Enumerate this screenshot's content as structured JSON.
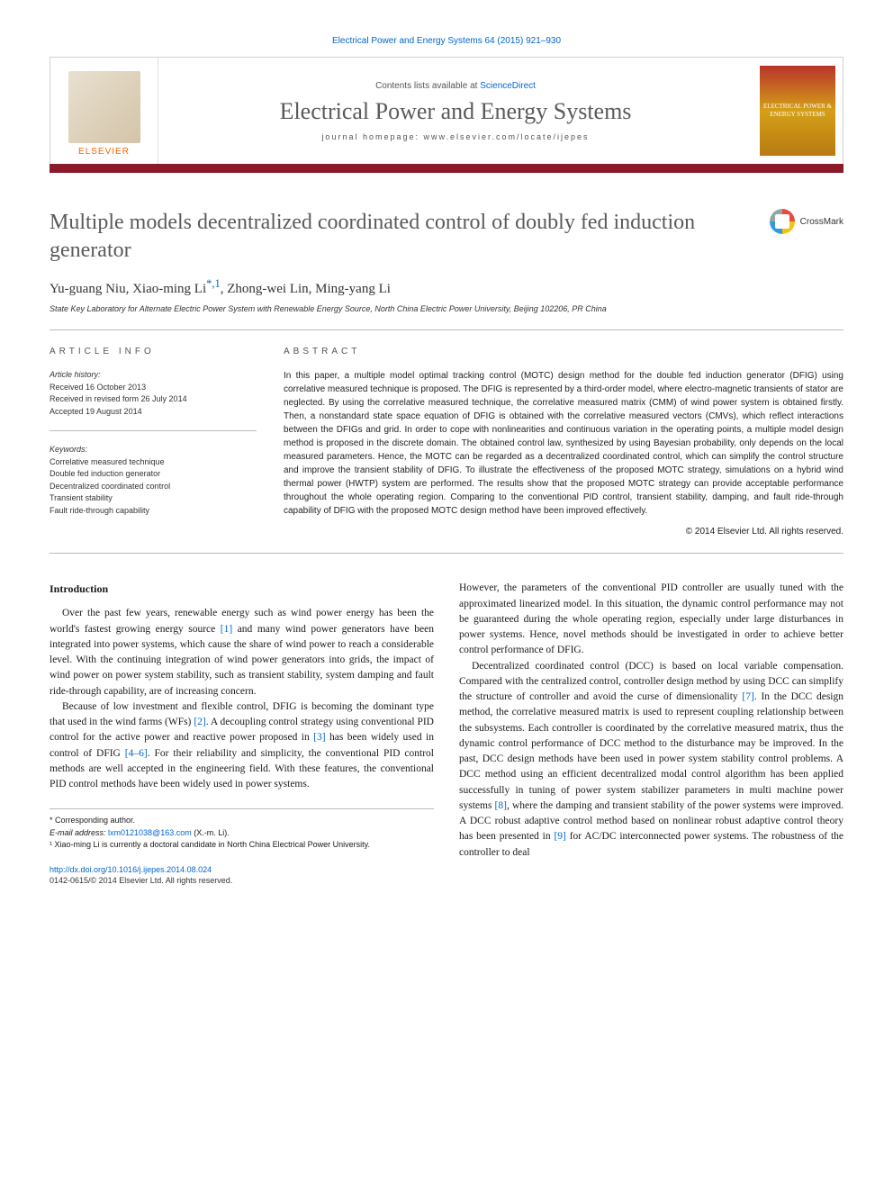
{
  "header": {
    "citation": "Electrical Power and Energy Systems 64 (2015) 921–930",
    "contents_prefix": "Contents lists available at ",
    "contents_link": "ScienceDirect",
    "journal_name": "Electrical Power and Energy Systems",
    "homepage_label": "journal homepage: www.elsevier.com/locate/ijepes",
    "publisher": "ELSEVIER",
    "cover_text": "ELECTRICAL POWER & ENERGY SYSTEMS",
    "crossmark": "CrossMark"
  },
  "article": {
    "title": "Multiple models decentralized coordinated control of doubly fed induction generator",
    "authors_plain": "Yu-guang Niu, Xiao-ming Li",
    "author_corr_marks": "*,1",
    "authors_rest": ", Zhong-wei Lin, Ming-yang Li",
    "affiliation": "State Key Laboratory for Alternate Electric Power System with Renewable Energy Source, North China Electric Power University, Beijing 102206, PR China"
  },
  "info": {
    "label": "ARTICLE INFO",
    "history_label": "Article history:",
    "received": "Received 16 October 2013",
    "revised": "Received in revised form 26 July 2014",
    "accepted": "Accepted 19 August 2014",
    "keywords_label": "Keywords:",
    "keywords": [
      "Correlative measured technique",
      "Double fed induction generator",
      "Decentralized coordinated control",
      "Transient stability",
      "Fault ride-through capability"
    ]
  },
  "abstract": {
    "label": "ABSTRACT",
    "text": "In this paper, a multiple model optimal tracking control (MOTC) design method for the double fed induction generator (DFIG) using correlative measured technique is proposed. The DFIG is represented by a third-order model, where electro-magnetic transients of stator are neglected. By using the correlative measured technique, the correlative measured matrix (CMM) of wind power system is obtained firstly. Then, a nonstandard state space equation of DFIG is obtained with the correlative measured vectors (CMVs), which reflect interactions between the DFIGs and grid. In order to cope with nonlinearities and continuous variation in the operating points, a multiple model design method is proposed in the discrete domain. The obtained control law, synthesized by using Bayesian probability, only depends on the local measured parameters. Hence, the MOTC can be regarded as a decentralized coordinated control, which can simplify the control structure and improve the transient stability of DFIG. To illustrate the effectiveness of the proposed MOTC strategy, simulations on a hybrid wind thermal power (HWTP) system are performed. The results show that the proposed MOTC strategy can provide acceptable performance throughout the whole operating region. Comparing to the conventional PID control, transient stability, damping, and fault ride-through capability of DFIG with the proposed MOTC design method have been improved effectively.",
    "copyright": "© 2014 Elsevier Ltd. All rights reserved."
  },
  "body": {
    "intro_heading": "Introduction",
    "col1_p1_a": "Over the past few years, renewable energy such as wind power energy has been the world's fastest growing energy source ",
    "ref1": "[1]",
    "col1_p1_b": " and many wind power generators have been integrated into power systems, which cause the share of wind power to reach a considerable level. With the continuing integration of wind power generators into grids, the impact of wind power on power system stability, such as transient stability, system damping and fault ride-through capability, are of increasing concern.",
    "col1_p2_a": "Because of low investment and flexible control, DFIG is becoming the dominant type that used in the wind farms (WFs) ",
    "ref2": "[2]",
    "col1_p2_b": ". A decoupling control strategy using conventional PID control for the active power and reactive power proposed in ",
    "ref3": "[3]",
    "col1_p2_c": " has been widely used in control of DFIG ",
    "ref46": "[4–6]",
    "col1_p2_d": ". For their reliability and simplicity, the conventional PID control methods are well accepted in the engineering field. With these features, the conventional PID control methods have been widely used in power systems.",
    "col2_p1": "However, the parameters of the conventional PID controller are usually tuned with the approximated linearized model. In this situation, the dynamic control performance may not be guaranteed during the whole operating region, especially under large disturbances in power systems. Hence, novel methods should be investigated in order to achieve better control performance of DFIG.",
    "col2_p2_a": "Decentralized coordinated control (DCC) is based on local variable compensation. Compared with the centralized control, controller design method by using DCC can simplify the structure of controller and avoid the curse of dimensionality ",
    "ref7": "[7]",
    "col2_p2_b": ". In the DCC design method, the correlative measured matrix is used to represent coupling relationship between the subsystems. Each controller is coordinated by the correlative measured matrix, thus the dynamic control performance of DCC method to the disturbance may be improved. In the past, DCC design methods have been used in power system stability control problems. A DCC method using an efficient decentralized modal control algorithm has been applied successfully in tuning of power system stabilizer parameters in multi machine power systems ",
    "ref8": "[8]",
    "col2_p2_c": ", where the damping and transient stability of the power systems were improved. A DCC robust adaptive control method based on nonlinear robust adaptive control theory has been presented in ",
    "ref9": "[9]",
    "col2_p2_d": " for AC/DC interconnected power systems. The robustness of the controller to deal"
  },
  "footnotes": {
    "corr": "* Corresponding author.",
    "email_label": "E-mail address: ",
    "email": "lxm0121038@163.com",
    "email_suffix": " (X.-m. Li).",
    "note1": "¹ Xiao-ming Li is currently a doctoral candidate in North China Electrical Power University."
  },
  "doi": {
    "url": "http://dx.doi.org/10.1016/j.ijepes.2014.08.024",
    "issn": "0142-0615/© 2014 Elsevier Ltd. All rights reserved."
  },
  "colors": {
    "accent": "#8a1a28",
    "link": "#0066cc",
    "publisher": "#ff6600"
  }
}
